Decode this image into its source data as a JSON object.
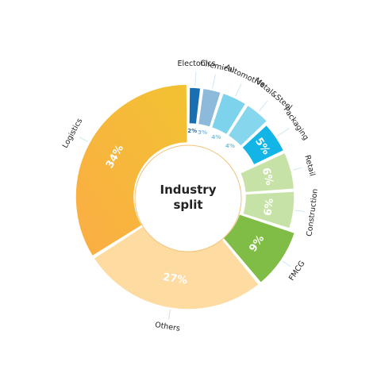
{
  "chart_data": {
    "type": "pie",
    "title": "Industry split",
    "title_lines": [
      "Industry",
      "split"
    ],
    "categories": [
      "Electonics",
      "Chemical",
      "Automotive",
      "Metal&Steel",
      "Packaging",
      "Retail",
      "Construction",
      "FMCG",
      "Others",
      "Logistics"
    ],
    "values": [
      2,
      3,
      4,
      4,
      5,
      6,
      6,
      9,
      27,
      34
    ],
    "value_labels": [
      "2%",
      "3%",
      "4%",
      "4%",
      "5%",
      "6%",
      "6%",
      "9%",
      "27%",
      "34%"
    ],
    "colors": [
      "#1a6fb3",
      "#8db9db",
      "#7ed3ec",
      "#86d6ee",
      "#13b5e6",
      "#c6e2a6",
      "#c6e2a6",
      "#7fbd46",
      "#fedba0",
      "#f6bb36"
    ],
    "label_colors": [
      "#1a6fb3",
      "#8db9db",
      "#6fc8e6",
      "#6fc8e6",
      "#ffffff",
      "#ffffff",
      "#ffffff",
      "#ffffff",
      "#ffffff",
      "#ffffff"
    ],
    "donut": true
  }
}
